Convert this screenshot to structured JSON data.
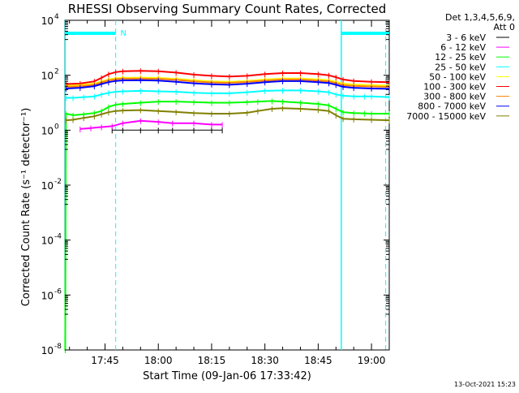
{
  "chart_data": {
    "type": "line",
    "title": "RHESSI Observing Summary Count Rates, Corrected",
    "xlabel": "Start Time (09-Jan-06 17:33:42)",
    "ylabel": "Corrected Count Rate (s⁻¹ detector⁻¹)",
    "yscale": "log",
    "ylim": [
      1e-08,
      10000.0
    ],
    "xlim_minutes_after_1730": [
      3.7,
      95
    ],
    "x_ticks": [
      {
        "label": "17:45",
        "minutes_after_1730": 15
      },
      {
        "label": "18:00",
        "minutes_after_1730": 30
      },
      {
        "label": "18:15",
        "minutes_after_1730": 45
      },
      {
        "label": "18:30",
        "minutes_after_1730": 60
      },
      {
        "label": "18:45",
        "minutes_after_1730": 75
      },
      {
        "label": "19:00",
        "minutes_after_1730": 90
      }
    ],
    "y_ticks": [
      {
        "base": "10",
        "exp": "4",
        "value": 10000.0
      },
      {
        "base": "10",
        "exp": "2",
        "value": 100
      },
      {
        "base": "10",
        "exp": "0",
        "value": 1
      },
      {
        "base": "10",
        "exp": "-2",
        "value": 0.01
      },
      {
        "base": "10",
        "exp": "-4",
        "value": 0.0001
      },
      {
        "base": "10",
        "exp": "-6",
        "value": 1e-06
      },
      {
        "base": "10",
        "exp": "-8",
        "value": 1e-08
      }
    ],
    "legend_header": [
      "Det 1,3,4,5,6,9,",
      "Att 0"
    ],
    "legend_position": "right",
    "series": [
      {
        "name": "3 - 6 keV",
        "color": "#000000",
        "x": [
          17,
          20,
          25,
          30,
          34,
          40,
          45,
          48
        ],
        "y": [
          1.0,
          1.0,
          1.0,
          1.0,
          1.0,
          1.0,
          1.0,
          1.0
        ]
      },
      {
        "name": "6 - 12 keV",
        "color": "#ff00ff",
        "x": [
          8,
          11,
          14,
          17,
          20,
          25,
          30,
          34,
          40,
          45,
          48
        ],
        "y": [
          1.1,
          1.2,
          1.3,
          1.4,
          1.8,
          2.2,
          2.0,
          1.8,
          1.8,
          1.6,
          1.6
        ]
      },
      {
        "name": "12 - 25 keV",
        "color": "#00ff00",
        "x": [
          3.8,
          4.0,
          6,
          9,
          12,
          14,
          16,
          18,
          20,
          25,
          30,
          35,
          40,
          45,
          50,
          55,
          58,
          62,
          65,
          70,
          75,
          78,
          80,
          82,
          85,
          88,
          90,
          95
        ],
        "y": [
          1e-08,
          4,
          3.5,
          3.8,
          4.2,
          5,
          7,
          8.5,
          9,
          10,
          11,
          11,
          10.5,
          10,
          10,
          10.5,
          11,
          11.5,
          11,
          10,
          9,
          8,
          6,
          4.5,
          4.2,
          4.1,
          4,
          4
        ]
      },
      {
        "name": "25 - 50 keV",
        "color": "#00ffff",
        "x": [
          4,
          6,
          9,
          12,
          14,
          16,
          18,
          20,
          25,
          30,
          35,
          40,
          45,
          50,
          55,
          60,
          65,
          70,
          75,
          78,
          80,
          82,
          85,
          88,
          90,
          95
        ],
        "y": [
          15,
          15,
          16,
          17,
          20,
          23,
          25,
          26,
          27,
          26,
          25,
          23,
          22,
          22,
          24,
          27,
          28,
          28,
          26,
          24,
          20,
          18,
          17,
          17,
          17,
          16
        ]
      },
      {
        "name": "50 - 100 keV",
        "color": "#ffff00",
        "x": [
          4,
          8,
          12,
          14,
          16,
          18,
          20,
          25,
          30,
          35,
          40,
          45,
          50,
          55,
          60,
          65,
          70,
          75,
          78,
          80,
          82,
          85,
          90,
          95
        ],
        "y": [
          42,
          44,
          50,
          60,
          70,
          78,
          80,
          82,
          80,
          74,
          66,
          60,
          58,
          62,
          70,
          76,
          76,
          70,
          66,
          58,
          50,
          46,
          44,
          42
        ]
      },
      {
        "name": "100 - 300 keV",
        "color": "#ff0000",
        "x": [
          4,
          8,
          12,
          14,
          16,
          18,
          20,
          25,
          30,
          35,
          40,
          45,
          50,
          55,
          60,
          65,
          70,
          75,
          78,
          80,
          82,
          85,
          90,
          95
        ],
        "y": [
          48,
          50,
          60,
          80,
          110,
          130,
          140,
          145,
          140,
          125,
          105,
          95,
          90,
          95,
          110,
          120,
          120,
          110,
          100,
          85,
          70,
          62,
          58,
          56
        ]
      },
      {
        "name": "300 - 800 keV",
        "color": "#ff8000",
        "x": [
          4,
          8,
          12,
          14,
          16,
          18,
          20,
          25,
          30,
          35,
          40,
          45,
          50,
          55,
          60,
          65,
          70,
          75,
          78,
          80,
          82,
          85,
          90,
          95
        ],
        "y": [
          38,
          40,
          45,
          55,
          65,
          72,
          75,
          76,
          74,
          68,
          60,
          55,
          53,
          57,
          64,
          70,
          70,
          64,
          60,
          52,
          44,
          41,
          39,
          38
        ]
      },
      {
        "name": "800 - 7000 keV",
        "color": "#0000ff",
        "x": [
          4,
          8,
          12,
          14,
          16,
          18,
          20,
          25,
          30,
          35,
          40,
          45,
          50,
          55,
          60,
          65,
          70,
          75,
          78,
          80,
          82,
          85,
          90,
          95
        ],
        "y": [
          33,
          35,
          40,
          48,
          56,
          62,
          65,
          66,
          64,
          58,
          51,
          47,
          45,
          49,
          56,
          61,
          61,
          56,
          52,
          45,
          38,
          35,
          33,
          32
        ]
      },
      {
        "name": "7000 - 15000 keV",
        "color": "#808000",
        "x": [
          4,
          6,
          9,
          12,
          14,
          16,
          18,
          20,
          25,
          30,
          35,
          40,
          45,
          50,
          55,
          58,
          62,
          65,
          70,
          75,
          78,
          80,
          82,
          85,
          90,
          95
        ],
        "y": [
          2.3,
          2.4,
          2.8,
          3.2,
          3.8,
          4.5,
          5.0,
          5.2,
          5.4,
          5.0,
          4.6,
          4.2,
          4.0,
          4.0,
          4.3,
          5,
          6,
          6.3,
          6.0,
          5.5,
          5,
          3.5,
          2.6,
          2.5,
          2.4,
          2.3
        ]
      }
    ],
    "annotations": {
      "night_bars": [
        {
          "x_start": 3.8,
          "x_end": 18
        },
        {
          "x_start": 81.5,
          "x_end": 95
        }
      ],
      "saa_lines": [
        18,
        94
      ],
      "night_lines": [
        3.8,
        81.5
      ],
      "markers": [
        {
          "text": "N",
          "x": 19.3
        }
      ]
    }
  },
  "footer": {
    "timestamp": "13-Oct-2021 15:23"
  }
}
